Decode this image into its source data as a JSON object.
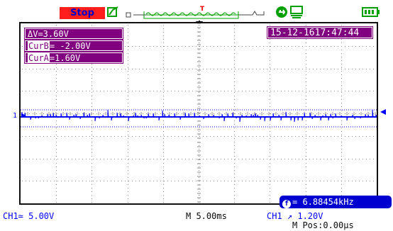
{
  "status": {
    "run_state": "Stop"
  },
  "icons": {
    "acquire": "acquire-icon",
    "timeline": "memory-timeline-icon",
    "trigger_position": "trigger-position-icon",
    "usb": "usb-icon",
    "save": "save-icon",
    "battery": "battery-icon",
    "channel_marker": "channel-ground-marker",
    "trigger_level": "trigger-level-marker",
    "frequency": "frequency-counter-icon"
  },
  "cursor_readouts": {
    "delta_v": "ΔV=3.60V",
    "cur_b_label": "CurB",
    "cur_b_value": "= -2.00V",
    "cur_a_label": "CurA",
    "cur_a_value": "=1.60V"
  },
  "datetime": "15-12-1617:47:44",
  "frequency": "= 6.88454kHz",
  "channel_marker_label": "1",
  "bottom": {
    "ch1_scale": "CH1≃ 5.00V",
    "timebase": "M 5.00ms",
    "trigger": "CH1 ↗ 1.20V",
    "position": "M Pos:0.00μs"
  },
  "colors": {
    "stop_bg": "#ff1e1e",
    "readout_bg": "#800080",
    "trace": "#0000ff",
    "freq_bg": "#0000d0",
    "grid": "#8c8c8c",
    "usb_icon": "#00a000"
  }
}
